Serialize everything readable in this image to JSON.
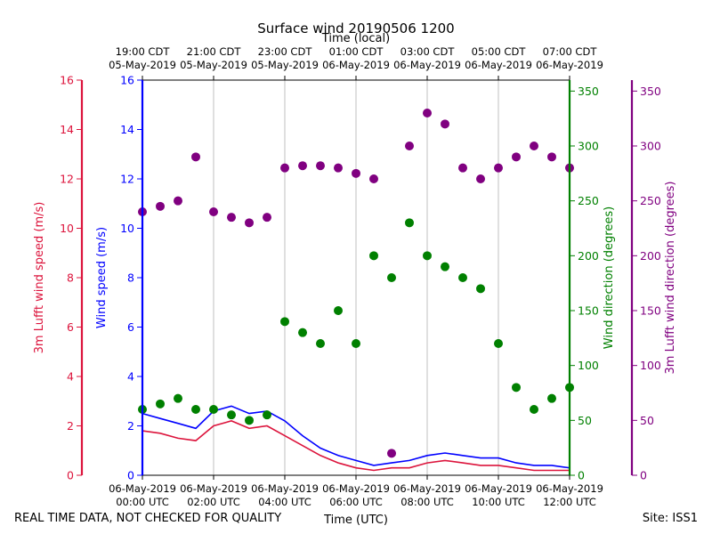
{
  "chart_data": {
    "type": "scatter",
    "title": "Surface wind 20190506 1200",
    "top_axis_title": "Time (local)",
    "bottom_axis_title": "Time (UTC)",
    "xlim": [
      0,
      12
    ],
    "x_ticks": [
      0,
      2,
      4,
      6,
      8,
      10,
      12
    ],
    "x_tick_labels_utc": [
      {
        "date": "06-May-2019",
        "time": "00:00 UTC"
      },
      {
        "date": "06-May-2019",
        "time": "02:00 UTC"
      },
      {
        "date": "06-May-2019",
        "time": "04:00 UTC"
      },
      {
        "date": "06-May-2019",
        "time": "06:00 UTC"
      },
      {
        "date": "06-May-2019",
        "time": "08:00 UTC"
      },
      {
        "date": "06-May-2019",
        "time": "10:00 UTC"
      },
      {
        "date": "06-May-2019",
        "time": "12:00 UTC"
      }
    ],
    "x_tick_labels_local": [
      {
        "time": "19:00 CDT",
        "date": "05-May-2019"
      },
      {
        "time": "21:00 CDT",
        "date": "05-May-2019"
      },
      {
        "time": "23:00 CDT",
        "date": "05-May-2019"
      },
      {
        "time": "01:00 CDT",
        "date": "06-May-2019"
      },
      {
        "time": "03:00 CDT",
        "date": "06-May-2019"
      },
      {
        "time": "05:00 CDT",
        "date": "06-May-2019"
      },
      {
        "time": "07:00 CDT",
        "date": "06-May-2019"
      }
    ],
    "axes": [
      {
        "id": "lufft_speed",
        "label": "3m Lufft wind speed (m/s)",
        "color": "#dc143c",
        "lim": [
          0,
          16
        ],
        "ticks": [
          0,
          2,
          4,
          6,
          8,
          10,
          12,
          14,
          16
        ]
      },
      {
        "id": "speed",
        "label": "Wind speed (m/s)",
        "color": "#0000ff",
        "lim": [
          0,
          16
        ],
        "ticks": [
          0,
          2,
          4,
          6,
          8,
          10,
          12,
          14,
          16
        ]
      },
      {
        "id": "direction",
        "label": "Wind direction (degrees)",
        "color": "#008000",
        "lim": [
          0,
          360
        ],
        "ticks": [
          0,
          50,
          100,
          150,
          200,
          250,
          300,
          350
        ]
      },
      {
        "id": "lufft_direction",
        "label": "3m Lufft wind direction (degrees)",
        "color": "#800080",
        "lim": [
          0,
          360
        ],
        "ticks": [
          0,
          50,
          100,
          150,
          200,
          250,
          300,
          350
        ]
      }
    ],
    "series": [
      {
        "name": "Wind speed",
        "axis": "speed",
        "style": "line",
        "color": "#0000ff",
        "x": [
          0,
          0.5,
          1,
          1.5,
          2,
          2.5,
          3,
          3.5,
          4,
          4.5,
          5,
          5.5,
          6,
          6.5,
          7,
          7.5,
          8,
          8.5,
          9,
          9.5,
          10,
          10.5,
          11,
          11.5,
          12
        ],
        "y": [
          2.5,
          2.3,
          2.1,
          1.9,
          2.6,
          2.8,
          2.5,
          2.6,
          2.2,
          1.6,
          1.1,
          0.8,
          0.6,
          0.4,
          0.5,
          0.6,
          0.8,
          0.9,
          0.8,
          0.7,
          0.7,
          0.5,
          0.4,
          0.4,
          0.3
        ]
      },
      {
        "name": "3m Lufft wind speed",
        "axis": "lufft_speed",
        "style": "line",
        "color": "#dc143c",
        "x": [
          0,
          0.5,
          1,
          1.5,
          2,
          2.5,
          3,
          3.5,
          4,
          4.5,
          5,
          5.5,
          6,
          6.5,
          7,
          7.5,
          8,
          8.5,
          9,
          9.5,
          10,
          10.5,
          11,
          11.5,
          12
        ],
        "y": [
          1.8,
          1.7,
          1.5,
          1.4,
          2.0,
          2.2,
          1.9,
          2.0,
          1.6,
          1.2,
          0.8,
          0.5,
          0.3,
          0.2,
          0.3,
          0.3,
          0.5,
          0.6,
          0.5,
          0.4,
          0.4,
          0.3,
          0.2,
          0.2,
          0.2
        ]
      },
      {
        "name": "Wind direction",
        "axis": "direction",
        "style": "scatter",
        "color": "#008000",
        "x": [
          0,
          0.5,
          1,
          1.5,
          2,
          2.5,
          3,
          3.5,
          4,
          4.5,
          5,
          5.5,
          6,
          6.5,
          7,
          7.5,
          8,
          8.5,
          9,
          9.5,
          10,
          10.5,
          11,
          11.5,
          12
        ],
        "y": [
          60,
          65,
          70,
          60,
          60,
          55,
          50,
          55,
          140,
          130,
          120,
          150,
          120,
          200,
          180,
          230,
          200,
          190,
          180,
          170,
          120,
          80,
          60,
          70,
          80
        ]
      },
      {
        "name": "3m Lufft wind direction",
        "axis": "lufft_direction",
        "style": "scatter",
        "color": "#800080",
        "x": [
          0,
          0.5,
          1,
          1.5,
          2,
          2.5,
          3,
          3.5,
          4,
          4.5,
          5,
          5.5,
          6,
          6.5,
          7,
          7.5,
          8,
          8.5,
          9,
          9.5,
          10,
          10.5,
          11,
          11.5,
          12
        ],
        "y": [
          240,
          245,
          250,
          290,
          240,
          235,
          230,
          235,
          280,
          282,
          282,
          280,
          275,
          270,
          20,
          300,
          330,
          320,
          280,
          270,
          280,
          290,
          300,
          290,
          280
        ]
      }
    ]
  },
  "footer": {
    "left": "REAL TIME DATA, NOT CHECKED FOR QUALITY",
    "right": "Site: ISS1"
  }
}
